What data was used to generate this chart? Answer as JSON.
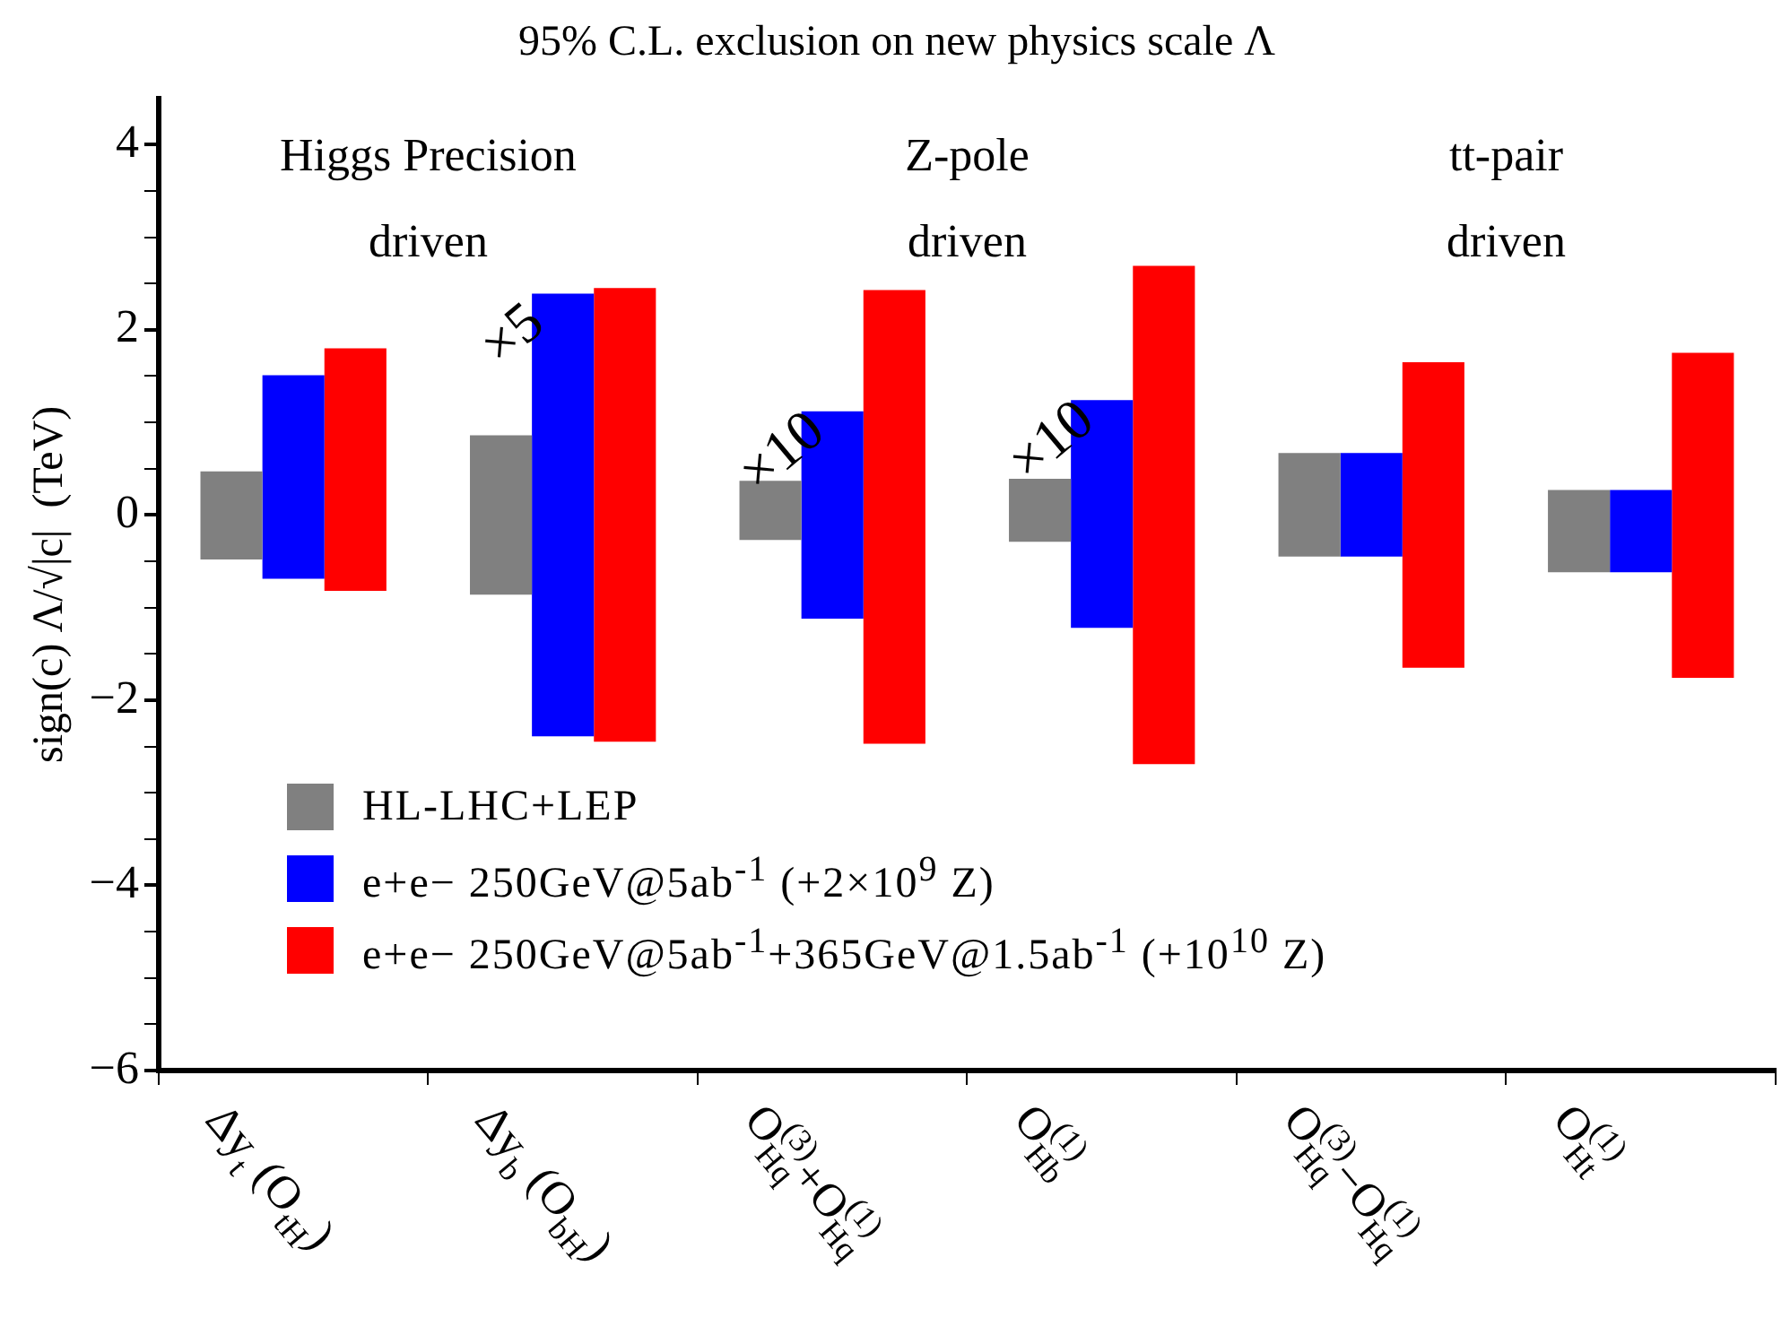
{
  "chart_data": {
    "type": "bar",
    "title": "95% C.L. exclusion on new physics scale Λ",
    "ylabel": "sign(c) Λ/√|c|  (TeV)",
    "categories": [
      "Δy$_{t}$ (O$_{tH}$)",
      "Δy$_{b}$ (O$_{bH}$)",
      "O$_{Hq}$$^{(3)}$+O$_{Hq}$$^{(1)}$",
      "O$_{Hb}$$^{(1)}$",
      "O$_{Hq}$$^{(3)}$−O$_{Hq}$$^{(1)}$",
      "O$_{Ht}$$^{(1)}$"
    ],
    "series": [
      {
        "name": "HL-LHC+LEP",
        "color": "#808080",
        "base": [
          -0.48,
          -0.86,
          -0.27,
          -0.29,
          -0.45,
          -0.62
        ],
        "values": [
          0.95,
          1.72,
          0.64,
          0.68,
          1.12,
          0.89
        ]
      },
      {
        "name": "e+e− 250GeV@5ab$^{-1}$ (+2×10$^{9}$ Z)",
        "color": "#0000ff",
        "base": [
          -0.69,
          -2.39,
          -1.12,
          -1.22,
          -0.45,
          -0.62
        ],
        "values": [
          2.2,
          4.78,
          2.24,
          2.46,
          1.12,
          0.89
        ]
      },
      {
        "name": "e+e− 250GeV@5ab$^{-1}$+365GeV@1.5ab$^{-1}$ (+10$^{10}$ Z)",
        "color": "#ff0000",
        "base": [
          -0.82,
          -2.45,
          -2.47,
          -2.69,
          -1.65,
          -1.76
        ],
        "values": [
          2.62,
          4.9,
          4.9,
          5.38,
          3.3,
          3.51
        ]
      }
    ],
    "annotations": [
      "Higgs Precision driven",
      "Z-pole driven",
      "tt-pair driven",
      "×5",
      "×10",
      "×10"
    ],
    "ylim": [
      -6,
      4.5
    ],
    "yticks": [
      -6,
      {
        "value": -5.5,
        "label": null
      },
      {
        "value": -5,
        "label": null
      },
      {
        "value": -4.5,
        "label": null
      },
      -4,
      {
        "value": -3.5,
        "label": null
      },
      {
        "value": -3,
        "label": null
      },
      {
        "value": -2.5,
        "label": null
      },
      -2,
      {
        "value": -1.5,
        "label": null
      },
      {
        "value": -1,
        "label": null
      },
      {
        "value": -0.5,
        "label": null
      },
      0,
      {
        "value": 0.5,
        "label": null
      },
      {
        "value": 1,
        "label": null
      },
      {
        "value": 1.5,
        "label": null
      },
      2,
      {
        "value": 2.5,
        "label": null
      },
      {
        "value": 3,
        "label": null
      },
      {
        "value": 3.5,
        "label": null
      },
      4
    ],
    "grid": false,
    "legend": "bottom left"
  }
}
